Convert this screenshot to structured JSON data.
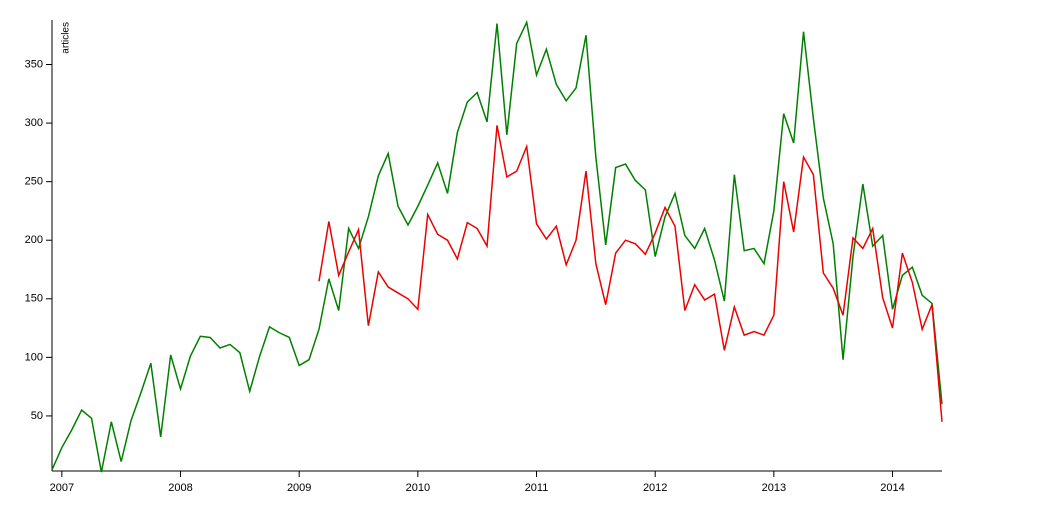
{
  "chart_data": {
    "type": "line",
    "y_label": "articles",
    "x": [
      2006.917,
      2007,
      2007.083,
      2007.167,
      2007.25,
      2007.333,
      2007.417,
      2007.5,
      2007.583,
      2007.667,
      2007.75,
      2007.833,
      2007.917,
      2008,
      2008.083,
      2008.167,
      2008.25,
      2008.333,
      2008.417,
      2008.5,
      2008.583,
      2008.667,
      2008.75,
      2008.833,
      2008.917,
      2009,
      2009.083,
      2009.167,
      2009.25,
      2009.333,
      2009.417,
      2009.5,
      2009.583,
      2009.667,
      2009.75,
      2009.833,
      2009.917,
      2010,
      2010.083,
      2010.167,
      2010.25,
      2010.333,
      2010.417,
      2010.5,
      2010.583,
      2010.667,
      2010.75,
      2010.833,
      2010.917,
      2011,
      2011.083,
      2011.167,
      2011.25,
      2011.333,
      2011.417,
      2011.5,
      2011.583,
      2011.667,
      2011.75,
      2011.833,
      2011.917,
      2012,
      2012.083,
      2012.167,
      2012.25,
      2012.333,
      2012.417,
      2012.5,
      2012.583,
      2012.667,
      2012.75,
      2012.833,
      2012.917,
      2013,
      2013.083,
      2013.167,
      2013.25,
      2013.333,
      2013.417,
      2013.5,
      2013.583,
      2013.667,
      2013.75,
      2013.833,
      2013.917,
      2014,
      2014.083,
      2014.167,
      2014.25,
      2014.333,
      2014.417
    ],
    "series": [
      {
        "color": "#008000",
        "values": [
          4,
          23,
          38,
          55,
          48,
          2,
          45,
          11,
          46,
          70,
          95,
          32,
          102,
          73,
          101,
          118,
          117,
          108,
          111,
          104,
          71,
          101,
          126,
          121,
          117,
          93,
          98,
          124,
          167,
          140,
          210,
          193,
          220,
          255,
          274,
          229,
          213,
          229,
          247,
          266,
          240,
          292,
          318,
          326,
          301,
          385,
          290,
          368,
          386,
          341,
          363,
          333,
          319,
          330,
          375,
          271,
          196,
          262,
          265,
          251,
          243,
          186,
          220,
          240,
          204,
          193,
          210,
          183,
          148,
          256,
          191,
          193,
          180,
          225,
          308,
          283,
          378,
          304,
          236,
          197,
          98,
          186,
          248,
          195,
          204,
          141,
          170,
          177,
          153,
          146,
          60
        ]
      },
      {
        "color": "#ee0000",
        "values": [
          null,
          null,
          null,
          null,
          null,
          null,
          null,
          null,
          null,
          null,
          null,
          null,
          null,
          null,
          null,
          null,
          null,
          null,
          null,
          null,
          null,
          null,
          null,
          null,
          null,
          null,
          null,
          165,
          216,
          170,
          190,
          209,
          127,
          173,
          160,
          155,
          150,
          141,
          222,
          205,
          200,
          184,
          215,
          210,
          195,
          298,
          254,
          259,
          280,
          214,
          201,
          212,
          179,
          200,
          259,
          180,
          145,
          189,
          200,
          197,
          188,
          206,
          228,
          212,
          140,
          162,
          149,
          154,
          106,
          143,
          119,
          122,
          119,
          136,
          250,
          207,
          271,
          256,
          172,
          159,
          136,
          202,
          193,
          210,
          151,
          125,
          189,
          164,
          124,
          145,
          45
        ]
      }
    ],
    "xlim": [
      2006.917,
      2014.417
    ],
    "xticks": [
      2007,
      2008,
      2009,
      2010,
      2011,
      2012,
      2013,
      2014
    ],
    "ylim": [
      0,
      388
    ],
    "yticks": [
      50,
      100,
      150,
      200,
      250,
      300,
      350
    ]
  }
}
